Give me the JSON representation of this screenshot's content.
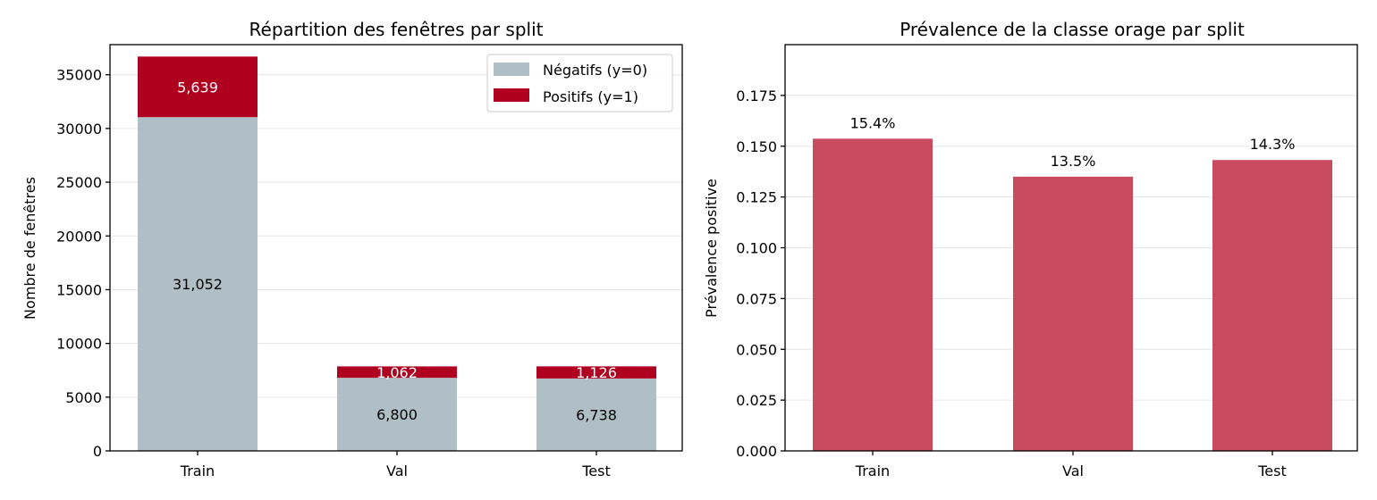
{
  "colors": {
    "negatifs": "#b0bec5",
    "positifs": "#b00020",
    "prevalence": "#c84b5e"
  },
  "chart_data": [
    {
      "type": "bar",
      "stacked": true,
      "title": "Répartition des fenêtres par split",
      "xlabel": "",
      "ylabel": "Nombre de fenêtres",
      "categories": [
        "Train",
        "Val",
        "Test"
      ],
      "series": [
        {
          "name": "Négatifs (y=0)",
          "values": [
            31052,
            6800,
            6738
          ],
          "labels": [
            "31,052",
            "6,800",
            "6,738"
          ]
        },
        {
          "name": "Positifs (y=1)",
          "values": [
            5639,
            1062,
            1126
          ],
          "labels": [
            "5,639",
            "1,062",
            "1,126"
          ]
        }
      ],
      "ylim": [
        0,
        37800
      ],
      "yticks": [
        0,
        5000,
        10000,
        15000,
        20000,
        25000,
        30000,
        35000
      ],
      "ytick_labels": [
        "0",
        "5000",
        "10000",
        "15000",
        "20000",
        "25000",
        "30000",
        "35000"
      ],
      "grid": true,
      "legend": "top-right"
    },
    {
      "type": "bar",
      "title": "Prévalence de la classe orage par split",
      "xlabel": "",
      "ylabel": "Prévalence positive",
      "categories": [
        "Train",
        "Val",
        "Test"
      ],
      "values": [
        0.1537,
        0.135,
        0.1432
      ],
      "value_labels": [
        "15.4%",
        "13.5%",
        "14.3%"
      ],
      "ylim": [
        0,
        0.2
      ],
      "yticks": [
        0,
        0.025,
        0.05,
        0.075,
        0.1,
        0.125,
        0.15,
        0.175
      ],
      "ytick_labels": [
        "0.000",
        "0.025",
        "0.050",
        "0.075",
        "0.100",
        "0.125",
        "0.150",
        "0.175"
      ],
      "grid": true
    }
  ]
}
